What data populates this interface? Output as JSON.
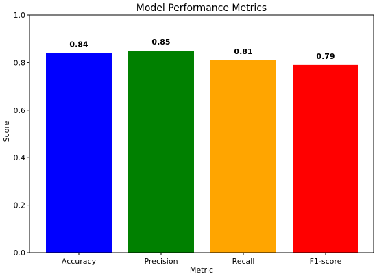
{
  "chart_data": {
    "type": "bar",
    "title": "Model Performance Metrics",
    "xlabel": "Metric",
    "ylabel": "Score",
    "categories": [
      "Accuracy",
      "Precision",
      "Recall",
      "F1-score"
    ],
    "values": [
      0.84,
      0.85,
      0.81,
      0.79
    ],
    "data_labels": [
      "0.84",
      "0.85",
      "0.81",
      "0.79"
    ],
    "colors": [
      "#0000ff",
      "#008000",
      "#ffa500",
      "#ff0000"
    ],
    "ylim": [
      0,
      1.0
    ],
    "yticks": [
      0.0,
      0.2,
      0.4,
      0.6,
      0.8,
      1.0
    ],
    "ytick_labels": [
      "0.0",
      "0.2",
      "0.4",
      "0.6",
      "0.8",
      "1.0"
    ],
    "grid": false,
    "legend": "none"
  }
}
